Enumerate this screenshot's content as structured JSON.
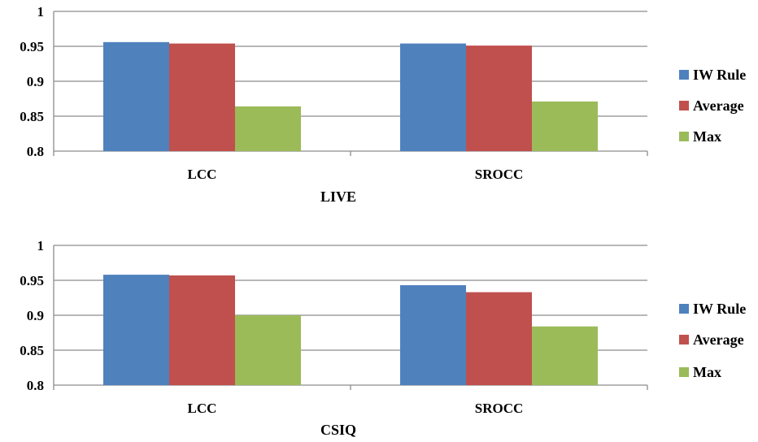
{
  "chart_data": [
    {
      "type": "bar",
      "title": "",
      "xlabel": "LIVE",
      "ylabel": "",
      "categories": [
        "LCC",
        "SROCC"
      ],
      "ylim": [
        0.8,
        1
      ],
      "yticks": [
        "0.8",
        "0.85",
        "0.9",
        "0.95",
        "1"
      ],
      "grid": true,
      "legend_position": "right",
      "series": [
        {
          "name": "IW Rule",
          "color": "#4F81BD",
          "values": [
            0.956,
            0.954
          ]
        },
        {
          "name": "Average",
          "color": "#C0504D",
          "values": [
            0.954,
            0.951
          ]
        },
        {
          "name": "Max",
          "color": "#9BBB59",
          "values": [
            0.864,
            0.871
          ]
        }
      ]
    },
    {
      "type": "bar",
      "title": "",
      "xlabel": "CSIQ",
      "ylabel": "",
      "categories": [
        "LCC",
        "SROCC"
      ],
      "ylim": [
        0.8,
        1
      ],
      "yticks": [
        "0.8",
        "0.85",
        "0.9",
        "0.95",
        "1"
      ],
      "grid": true,
      "legend_position": "right",
      "series": [
        {
          "name": "IW Rule",
          "color": "#4F81BD",
          "values": [
            0.958,
            0.943
          ]
        },
        {
          "name": "Average",
          "color": "#C0504D",
          "values": [
            0.957,
            0.933
          ]
        },
        {
          "name": "Max",
          "color": "#9BBB59",
          "values": [
            0.9,
            0.884
          ]
        }
      ]
    }
  ]
}
